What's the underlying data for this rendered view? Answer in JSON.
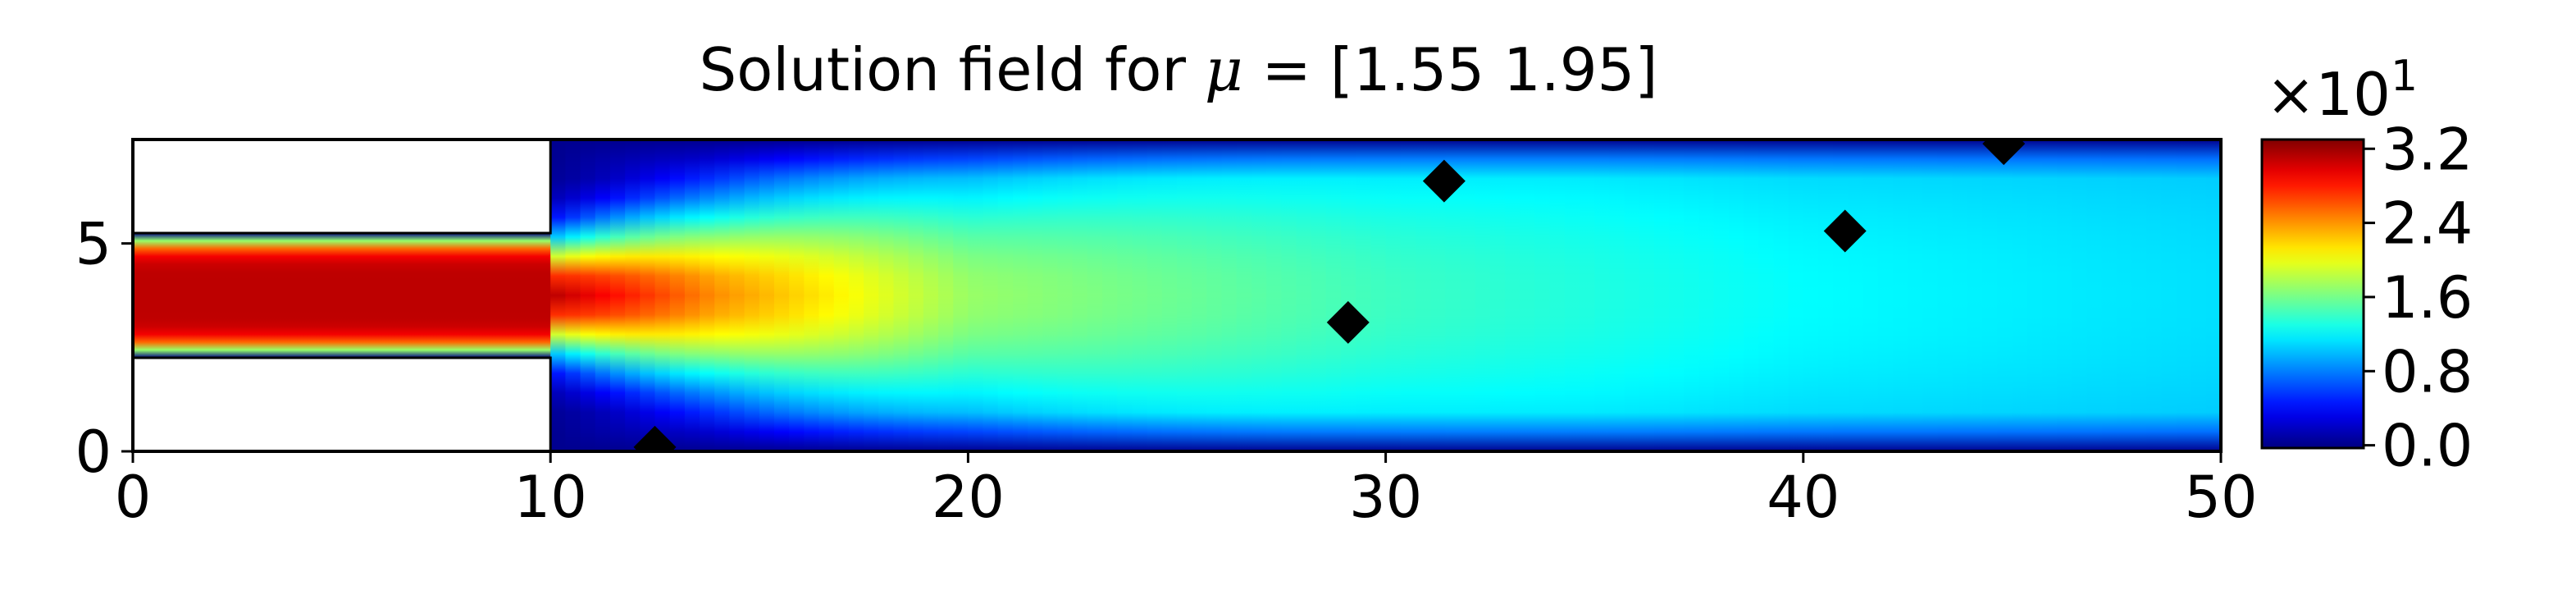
{
  "chart_data": {
    "type": "heatmap",
    "title_prefix": "Solution field for ",
    "title_symbol": "μ",
    "title_suffix": " = [1.55 1.95]",
    "xlabel": "",
    "ylabel": "",
    "xlim": [
      0,
      50
    ],
    "ylim": [
      0,
      7.5
    ],
    "x_ticks": [
      "0",
      "10",
      "20",
      "30",
      "40",
      "50"
    ],
    "y_ticks": [
      "0",
      "5"
    ],
    "domain": {
      "inlet_channel": {
        "x": [
          0,
          10
        ],
        "y": [
          2.25,
          5.25
        ]
      },
      "expansion": {
        "x": [
          10,
          50
        ],
        "y": [
          0,
          7.5
        ]
      }
    },
    "field": {
      "inlet_peak": 31,
      "centerline_decay": [
        [
          0,
          31
        ],
        [
          10,
          31
        ],
        [
          14,
          24
        ],
        [
          20,
          17
        ],
        [
          30,
          14
        ],
        [
          40,
          12
        ],
        [
          50,
          11
        ]
      ],
      "wall_min": 0.2
    },
    "colormap": "jet",
    "colorbar": {
      "multiplier_base": "×10",
      "multiplier_exp": "1",
      "tick_values": [
        0.0,
        0.8,
        1.6,
        2.4,
        3.2
      ],
      "tick_labels": [
        "0.0",
        "0.8",
        "1.6",
        "2.4",
        "3.2"
      ],
      "range": [
        -0.03,
        3.3
      ]
    },
    "markers": {
      "shape": "diamond",
      "color": "#000000",
      "points": [
        {
          "x": 12.5,
          "y": 0.1
        },
        {
          "x": 29.1,
          "y": 3.1
        },
        {
          "x": 31.4,
          "y": 6.5
        },
        {
          "x": 41.0,
          "y": 5.3
        },
        {
          "x": 44.8,
          "y": 7.4
        }
      ]
    }
  }
}
